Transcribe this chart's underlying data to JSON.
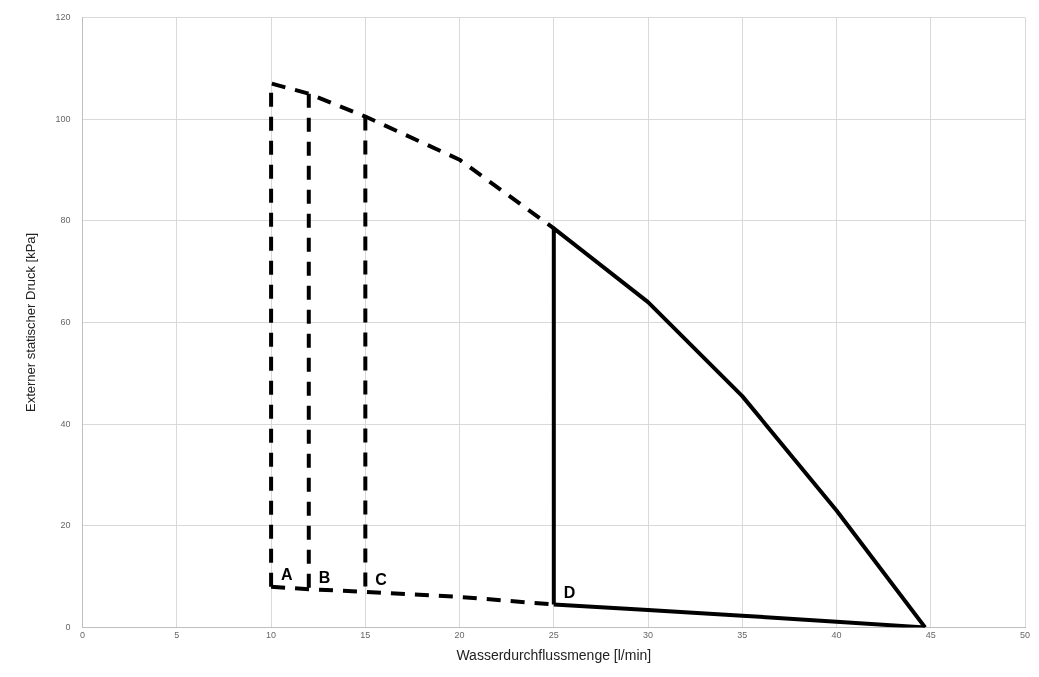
{
  "chart_data": {
    "type": "line",
    "xlabel": "Wasserdurchflussmenge [l/min]",
    "ylabel": "Externer statischer Druck [kPa]",
    "xlim": [
      0,
      50
    ],
    "xticks": [
      0,
      5,
      10,
      15,
      20,
      25,
      30,
      35,
      40,
      45,
      50
    ],
    "ylim": [
      0,
      120
    ],
    "yticks": [
      0,
      20,
      40,
      60,
      80,
      100,
      120
    ],
    "grid": true,
    "legend": false,
    "marker": "none",
    "series": [
      {
        "color": "#000000",
        "line_style": "dashed",
        "x": [
          10,
          10,
          12,
          15,
          20,
          25
        ],
        "values": [
          8,
          107,
          105,
          100.5,
          92,
          78.5
        ]
      },
      {
        "color": "#000000",
        "line_style": "dashed",
        "x": [
          10,
          12,
          15,
          20,
          25
        ],
        "values": [
          8,
          7.5,
          7,
          6,
          4.5
        ]
      },
      {
        "color": "#000000",
        "line_style": "dashed",
        "x": [
          12,
          12
        ],
        "values": [
          105,
          7.5
        ]
      },
      {
        "color": "#000000",
        "line_style": "dashed",
        "x": [
          15,
          15
        ],
        "values": [
          100.5,
          7
        ]
      },
      {
        "color": "#000000",
        "line_style": "solid",
        "x": [
          25,
          25,
          30,
          35,
          40,
          44.7
        ],
        "values": [
          4.5,
          78.5,
          64,
          45.5,
          23,
          0
        ]
      },
      {
        "color": "#000000",
        "line_style": "solid",
        "x": [
          25,
          30,
          35,
          40,
          44.7
        ],
        "values": [
          4.5,
          3.4,
          2.3,
          1.1,
          0
        ]
      }
    ],
    "annotations": [
      {
        "text": "A",
        "x": 10,
        "y": 8
      },
      {
        "text": "B",
        "x": 12,
        "y": 7.5
      },
      {
        "text": "C",
        "x": 15,
        "y": 7
      },
      {
        "text": "D",
        "x": 25,
        "y": 4.5
      }
    ]
  }
}
